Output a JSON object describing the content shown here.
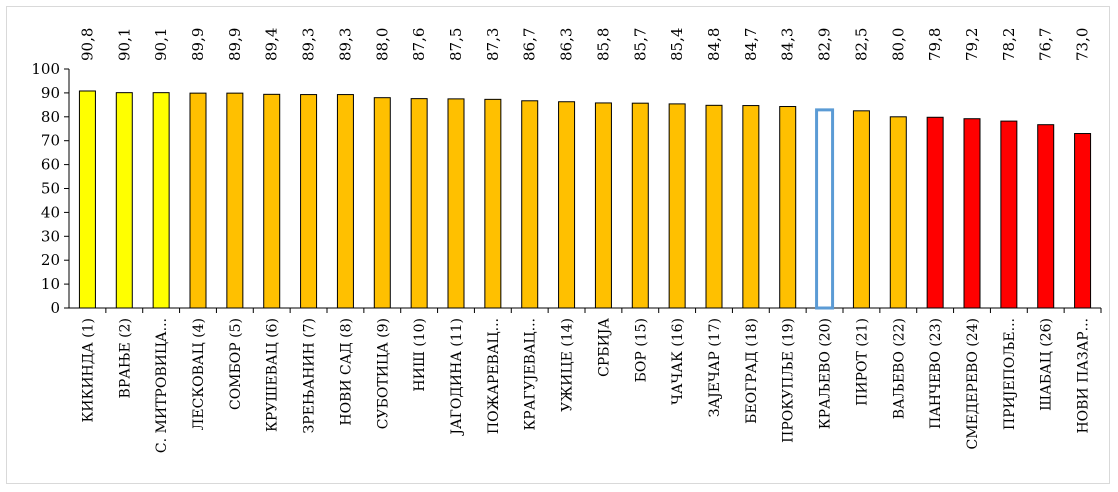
{
  "chart_data": {
    "type": "bar",
    "title": "",
    "xlabel": "",
    "ylabel": "",
    "ylim": [
      0,
      100
    ],
    "yticks": [
      0,
      10,
      20,
      30,
      40,
      50,
      60,
      70,
      80,
      90,
      100
    ],
    "grid": false,
    "legend": "none",
    "categories": [
      "КИКИНДА (1)",
      "ВРАЊЕ (2)",
      "С. МИТРОВИЦА...",
      "ЛЕСКОВАЦ (4)",
      "СОМБОР (5)",
      "КРУШЕВАЦ (6)",
      "ЗРЕЊАНИН (7)",
      "НОВИ САД (8)",
      "СУБОТИЦА (9)",
      "НИШ (10)",
      "ЈАГОДИНА (11)",
      "ПОЖАРЕВАЦ...",
      "КРАГУЈЕВАЦ...",
      "УЖИЦЕ (14)",
      "СРБИЈА",
      "БОР (15)",
      "ЧАЧАК (16)",
      "ЗАЈЕЧАР (17)",
      "БЕОГРАД (18)",
      "ПРОКУПЉЕ (19)",
      "КРАЉЕВО (20)",
      "ПИРОТ (21)",
      "ВАЉЕВО (22)",
      "ПАНЧЕВО (23)",
      "СМЕДЕРЕВО (24)",
      "ПРИЈЕПОЉЕ...",
      "ШАБАЦ (26)",
      "НОВИ ПАЗАР..."
    ],
    "values": [
      90.8,
      90.1,
      90.1,
      89.9,
      89.9,
      89.4,
      89.3,
      89.3,
      88.0,
      87.6,
      87.5,
      87.3,
      86.7,
      86.3,
      85.8,
      85.7,
      85.4,
      84.8,
      84.7,
      84.3,
      82.9,
      82.5,
      80.0,
      79.8,
      79.2,
      78.2,
      76.7,
      73.0
    ],
    "value_labels": [
      "90,8",
      "90,1",
      "90,1",
      "89,9",
      "89,9",
      "89,4",
      "89,3",
      "89,3",
      "88,0",
      "87,6",
      "87,5",
      "87,3",
      "86,7",
      "86,3",
      "85,8",
      "85,7",
      "85,4",
      "84,8",
      "84,7",
      "84,3",
      "82,9",
      "82,5",
      "80,0",
      "79,8",
      "79,2",
      "78,2",
      "76,7",
      "73,0"
    ],
    "bar_groups": [
      "top",
      "top",
      "top",
      "mid",
      "mid",
      "mid",
      "mid",
      "mid",
      "mid",
      "mid",
      "mid",
      "mid",
      "mid",
      "mid",
      "mid",
      "mid",
      "mid",
      "mid",
      "mid",
      "mid",
      "highlight",
      "mid",
      "mid",
      "low",
      "low",
      "low",
      "low",
      "low"
    ]
  },
  "colors": {
    "top": "#ffff00",
    "mid": "#ffc000",
    "low": "#ff0000",
    "highlight_outline": "#5b9bd5",
    "bar_outline": "#000000",
    "axis": "#000000"
  }
}
